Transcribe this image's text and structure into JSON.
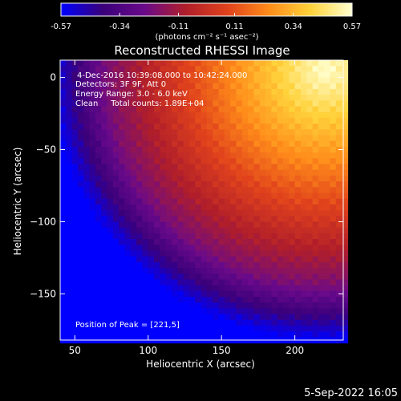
{
  "colors": {
    "background": "#000000",
    "text": "#ffffff",
    "colormap_stops": [
      "#0000ff",
      "#3a007a",
      "#6a0a8a",
      "#b01e2a",
      "#e0421c",
      "#ff8c1a",
      "#ffd23a",
      "#ffffd0"
    ]
  },
  "colorbar": {
    "ticks": [
      "-0.57",
      "-0.34",
      "-0.11",
      "0.11",
      "0.34",
      "0.57"
    ],
    "unit_label": "(photons cm⁻² s⁻¹ asec⁻²)"
  },
  "footer": {
    "timestamp": "5-Sep-2022 16:05"
  },
  "chart_data": {
    "type": "heatmap",
    "title": "Reconstructed RHESSI Image",
    "xlabel": "Heliocentric X (arcsec)",
    "ylabel": "Heliocentric Y (arcsec)",
    "xlim": [
      40,
      233
    ],
    "ylim": [
      -182,
      12
    ],
    "x_ticks": [
      50,
      100,
      150,
      200
    ],
    "y_ticks": [
      0,
      -50,
      -100,
      -150
    ],
    "x_tick_labels": [
      "50",
      "100",
      "150",
      "200"
    ],
    "y_tick_labels": [
      "0",
      "−50",
      "−100",
      "−150"
    ],
    "value_range": [
      -0.57,
      0.57
    ],
    "peak": [
      221,
      5
    ],
    "annotations": [
      "4-Dec-2016 10:39:08.000 to 10:42:24.000",
      "Detectors: 3F 9F, Att 0",
      "Energy Range: 3.0 - 6.0 keV",
      "Clean     Total counts: 1.89E+04"
    ],
    "peak_label": "Position of Peak = [221,5]"
  }
}
